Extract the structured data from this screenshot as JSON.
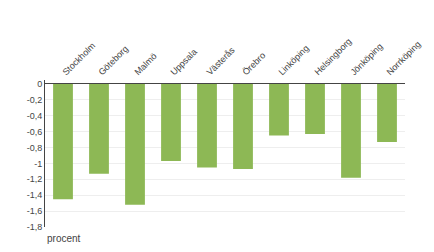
{
  "chart_data": {
    "type": "bar",
    "categories": [
      "Stockholm",
      "Göteborg",
      "Malmö",
      "Uppsala",
      "Västerås",
      "Örebro",
      "Linköping",
      "Helsingborg",
      "Jönköping",
      "Norrköping"
    ],
    "values": [
      -1.45,
      -1.13,
      -1.52,
      -0.97,
      -1.05,
      -1.07,
      -0.65,
      -0.63,
      -1.18,
      -0.73
    ],
    "color": "#8db855",
    "ylim": [
      -1.8,
      0.05
    ],
    "yticks": [
      0,
      {
        "value": -0.2,
        "label": "-0,2"
      },
      {
        "value": -0.4,
        "label": "-0,4"
      },
      {
        "value": -0.6,
        "label": "-0,6"
      },
      {
        "value": -0.8,
        "label": "-0,8"
      },
      -1,
      {
        "value": -1.2,
        "label": "-1,2"
      },
      {
        "value": -1.4,
        "label": "-1,4"
      },
      {
        "value": -1.6,
        "label": "-1,6"
      },
      {
        "value": -1.8,
        "label": "-1,8"
      }
    ],
    "ylabel": "procent",
    "grid": true
  }
}
